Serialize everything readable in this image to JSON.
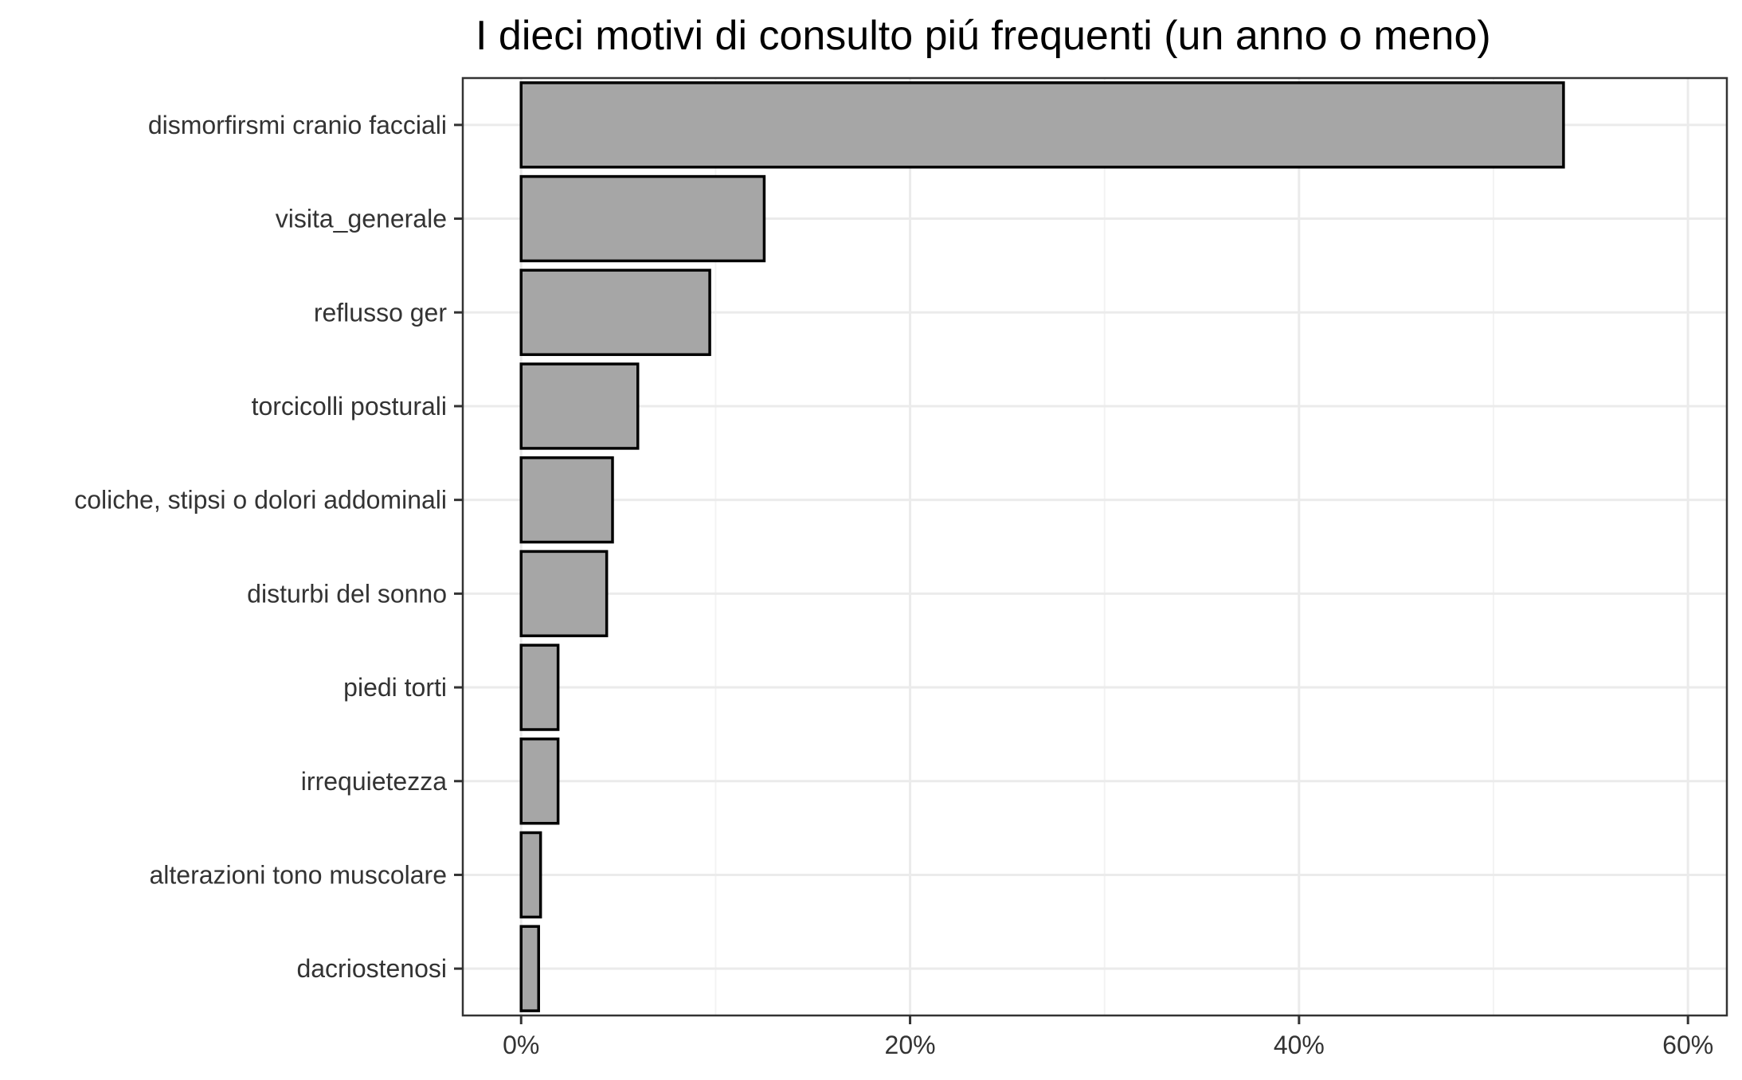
{
  "chart_data": {
    "type": "bar",
    "orientation": "horizontal",
    "title": "I dieci motivi di consulto piú frequenti (un anno o meno)",
    "xlabel": "",
    "ylabel": "",
    "categories": [
      "dismorfirsmi cranio facciali",
      "visita_generale",
      "reflusso ger",
      "torcicolli posturali",
      "coliche, stipsi o dolori addominali",
      "disturbi del sonno",
      "piedi torti",
      "irrequietezza",
      "alterazioni tono muscolare",
      "dacriostenosi"
    ],
    "values": [
      53.6,
      12.5,
      9.7,
      6.0,
      4.7,
      4.4,
      1.9,
      1.9,
      1.0,
      0.9
    ],
    "value_unit": "%",
    "xlim": [
      -3,
      62
    ],
    "x_ticks": [
      0,
      20,
      40,
      60
    ],
    "x_tick_labels": [
      "0%",
      "20%",
      "40%",
      "60%"
    ],
    "grid": true,
    "legend": "none",
    "colors": {
      "bar_fill": "#a6a6a6",
      "bar_stroke": "#000000",
      "grid_major": "#ebebeb",
      "grid_minor": "#f3f3f3",
      "panel_border": "#333333",
      "background": "#ffffff"
    }
  }
}
